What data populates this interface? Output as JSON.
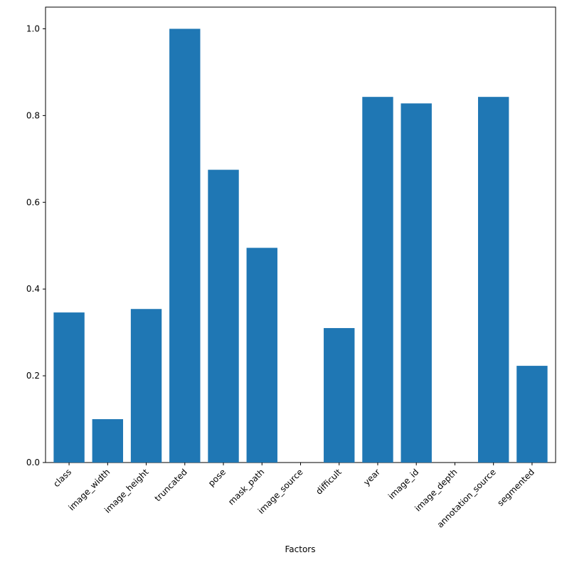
{
  "chart_data": {
    "type": "bar",
    "x_label": "Factors",
    "categories": [
      "class",
      "image_width",
      "image_height",
      "truncated",
      "pose",
      "mask_path",
      "image_source",
      "difficult",
      "year",
      "image_id",
      "image_depth",
      "annotation_source",
      "segmented"
    ],
    "values": [
      0.346,
      0.1,
      0.354,
      1.0,
      0.675,
      0.495,
      0,
      0.31,
      0.843,
      0.828,
      0,
      0.843,
      0.223
    ],
    "color": "#1f77b4",
    "ylim": [
      0,
      1.05
    ],
    "yticks": [
      {
        "value": 0,
        "label": "0.0"
      },
      0.2,
      0.4,
      0.6,
      0.8,
      {
        "value": 1,
        "label": "1.0"
      }
    ],
    "grid": false
  }
}
